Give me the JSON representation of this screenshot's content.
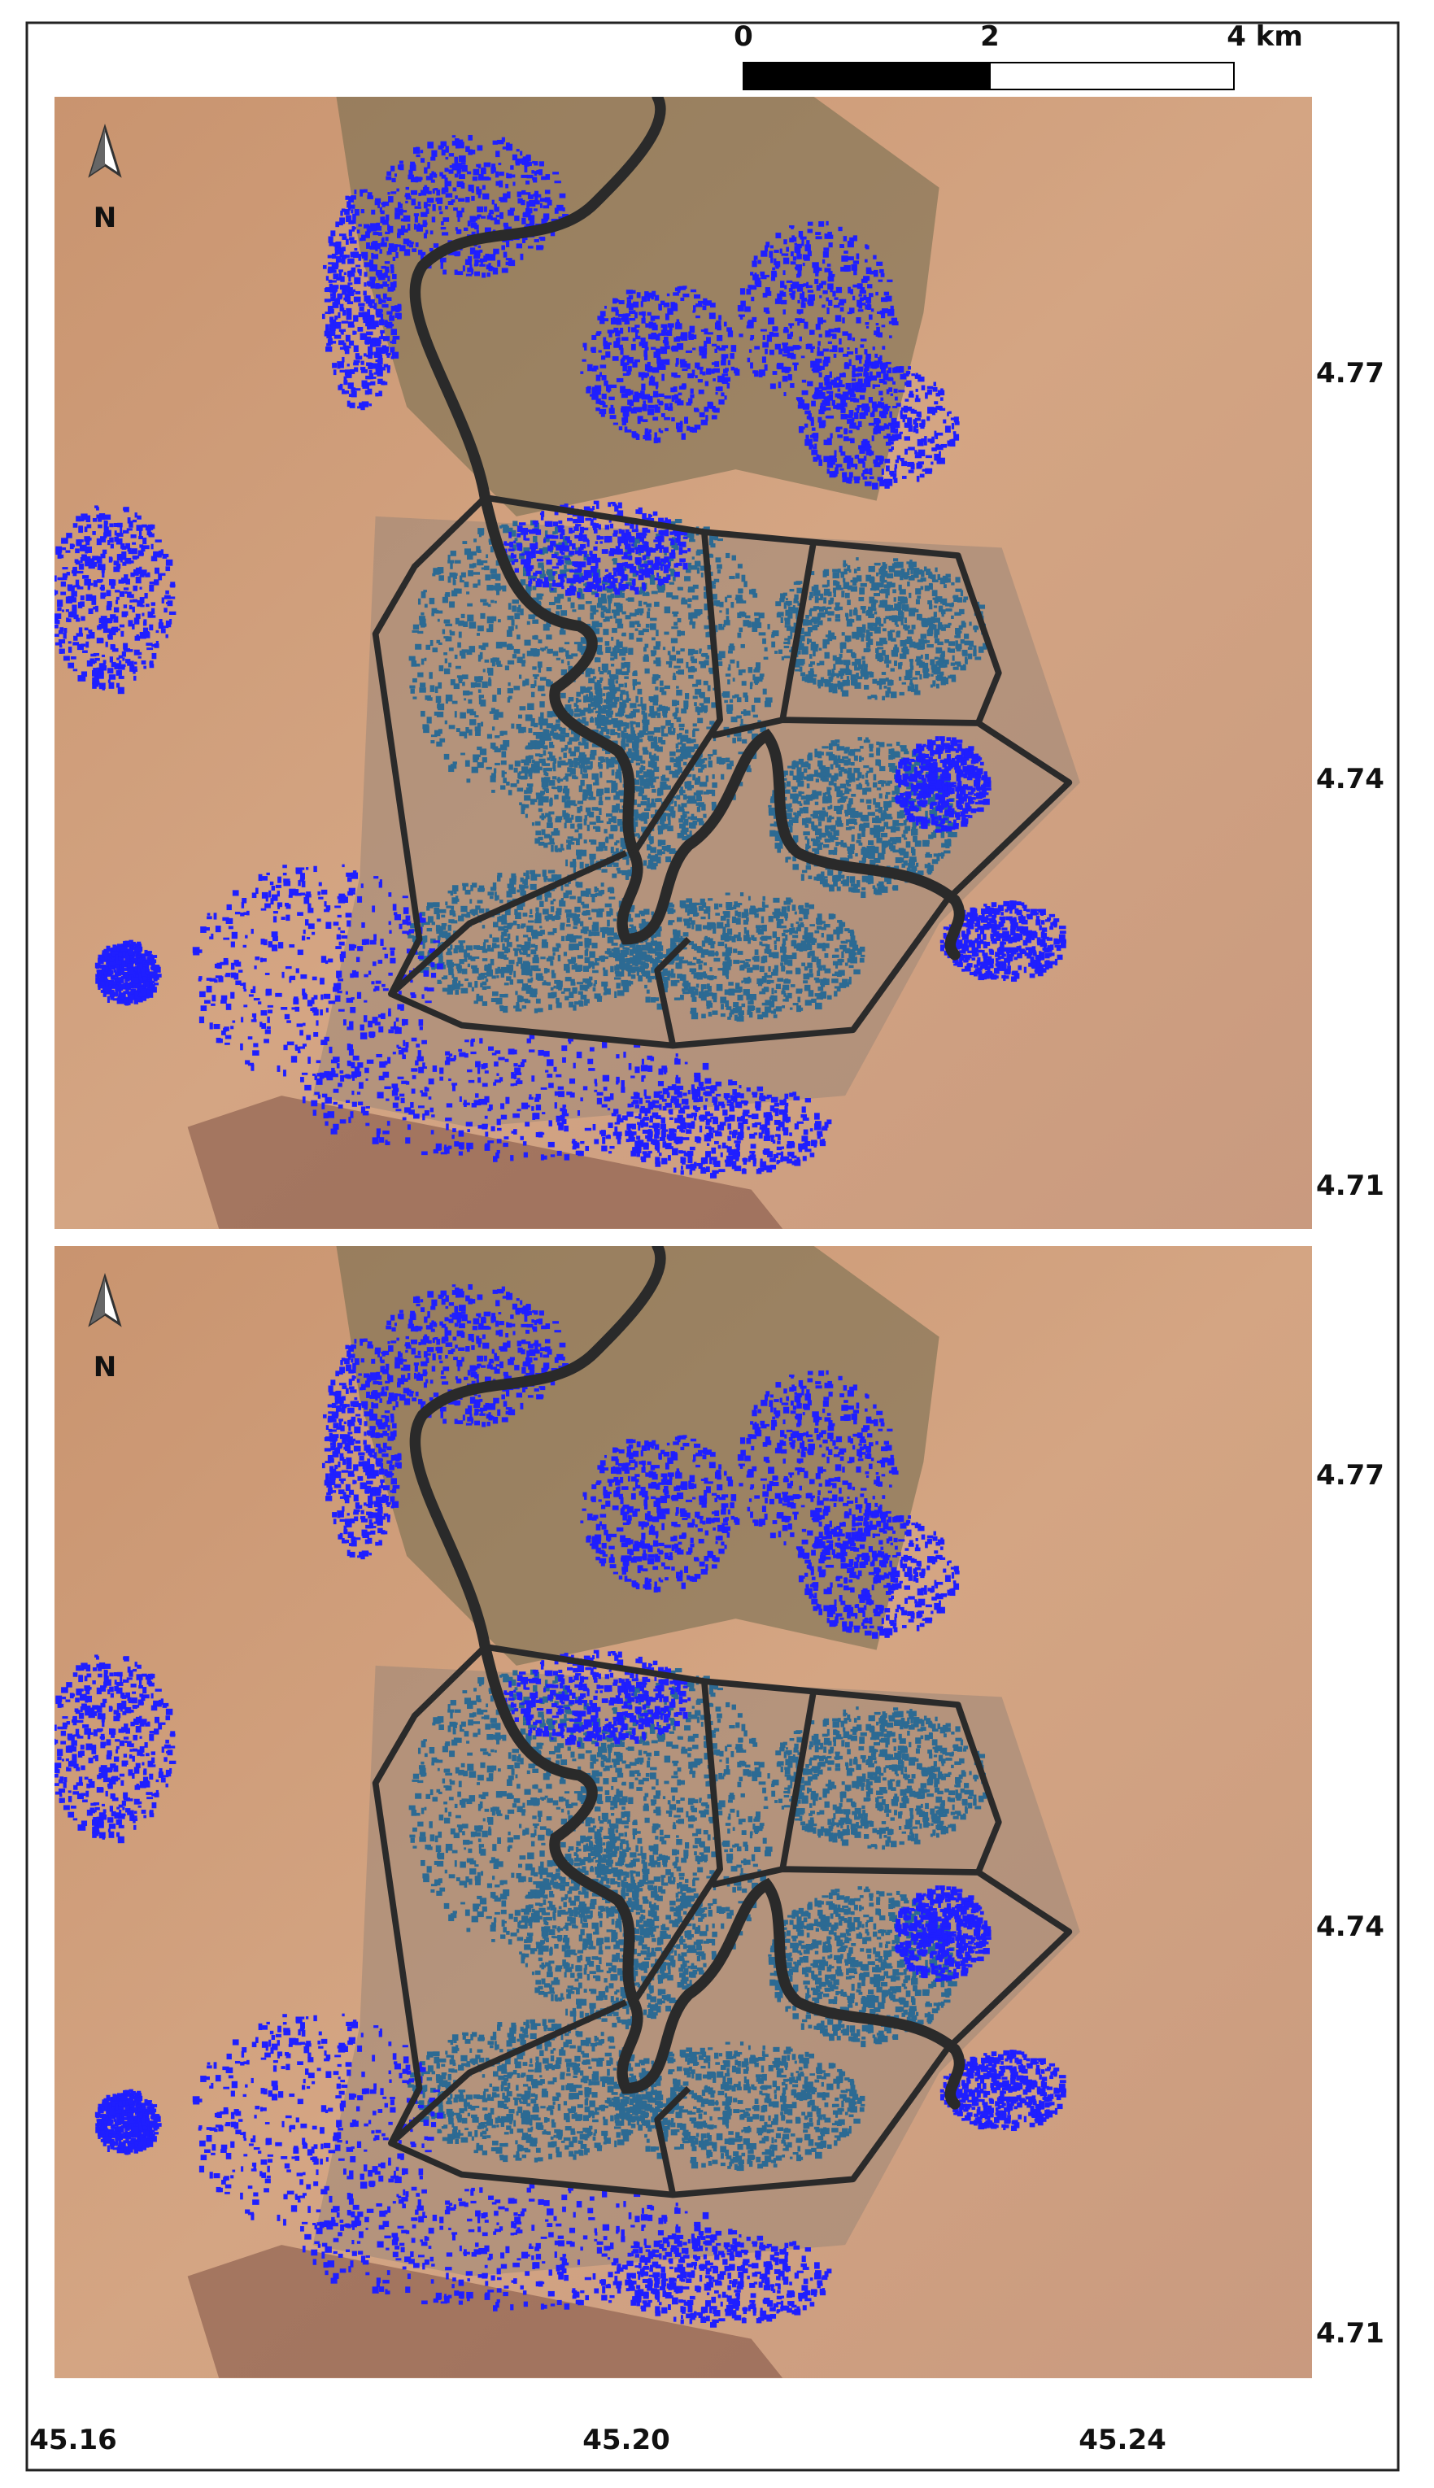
{
  "scale_bar": {
    "labels": [
      "0",
      "2",
      "4 km"
    ]
  },
  "panels": [
    {
      "north": "N",
      "lat_labels": [
        "4.77",
        "4.74",
        "4.71"
      ]
    },
    {
      "north": "N",
      "lat_labels": [
        "4.77",
        "4.74",
        "4.71"
      ]
    }
  ],
  "lon_labels": [
    "45.16",
    "45.20",
    "45.24"
  ]
}
